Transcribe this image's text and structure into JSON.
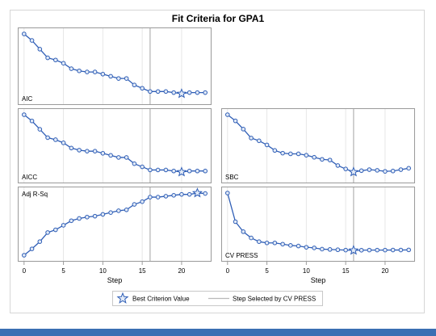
{
  "chart_data": {
    "type": "line",
    "title": "Fit Criteria for GPA1",
    "xlabel": "Step",
    "xlim": [
      -0.8,
      23.8
    ],
    "xticks": [
      0,
      5,
      10,
      15,
      20
    ],
    "selected_step": 16,
    "grid": "vertical",
    "colors": {
      "line": "#2f5eb6",
      "marker_fill": "#e3ebf7",
      "ref_line": "#b9b9b9",
      "frame": "#9a9a9a",
      "grid": "#e6e6e6",
      "text": "#000000"
    },
    "legend": {
      "placement": "bottom-center",
      "items": [
        {
          "label": "Best Criterion Value",
          "symbol": "star"
        },
        {
          "label": "Step Selected by CV PRESS",
          "symbol": "line"
        }
      ]
    },
    "panels": [
      {
        "name": "AIC",
        "label": "AIC",
        "label_corner": "bottom-left",
        "position": "top-left",
        "best_step": 20,
        "values": [
          -0.22,
          -0.28,
          -0.36,
          -0.44,
          -0.46,
          -0.49,
          -0.54,
          -0.56,
          -0.57,
          -0.57,
          -0.59,
          -0.61,
          -0.63,
          -0.63,
          -0.69,
          -0.72,
          -0.75,
          -0.75,
          -0.75,
          -0.76,
          -0.77,
          -0.76,
          -0.76,
          -0.76
        ]
      },
      {
        "name": "AICC",
        "label": "AICC",
        "label_corner": "bottom-left",
        "position": "mid-left",
        "best_step": 20,
        "values": [
          -0.22,
          -0.28,
          -0.36,
          -0.44,
          -0.46,
          -0.49,
          -0.54,
          -0.56,
          -0.57,
          -0.57,
          -0.59,
          -0.61,
          -0.63,
          -0.63,
          -0.69,
          -0.72,
          -0.75,
          -0.75,
          -0.75,
          -0.76,
          -0.77,
          -0.76,
          -0.76,
          -0.76
        ]
      },
      {
        "name": "SBC",
        "label": "SBC",
        "label_corner": "bottom-left",
        "position": "mid-right",
        "best_step": 16,
        "values": [
          1.0,
          0.91,
          0.79,
          0.66,
          0.62,
          0.56,
          0.48,
          0.44,
          0.43,
          0.43,
          0.41,
          0.38,
          0.35,
          0.34,
          0.26,
          0.21,
          0.165,
          0.185,
          0.2,
          0.19,
          0.175,
          0.18,
          0.2,
          0.22
        ]
      },
      {
        "name": "Adj R-Sq",
        "label": "Adj R-Sq",
        "label_corner": "top-left",
        "position": "bottom-left",
        "best_step": 22,
        "values": [
          0.05,
          0.12,
          0.2,
          0.3,
          0.33,
          0.38,
          0.43,
          0.455,
          0.47,
          0.48,
          0.5,
          0.52,
          0.54,
          0.55,
          0.61,
          0.64,
          0.69,
          0.69,
          0.7,
          0.71,
          0.72,
          0.72,
          0.735,
          0.73
        ]
      },
      {
        "name": "CV PRESS",
        "label": "CV PRESS",
        "label_corner": "bottom-left",
        "position": "bottom-right",
        "best_step": 16,
        "values": [
          1.0,
          0.54,
          0.38,
          0.28,
          0.22,
          0.2,
          0.2,
          0.18,
          0.16,
          0.15,
          0.13,
          0.12,
          0.1,
          0.095,
          0.09,
          0.085,
          0.08,
          0.083,
          0.085,
          0.085,
          0.085,
          0.086,
          0.086,
          0.088
        ]
      }
    ]
  }
}
